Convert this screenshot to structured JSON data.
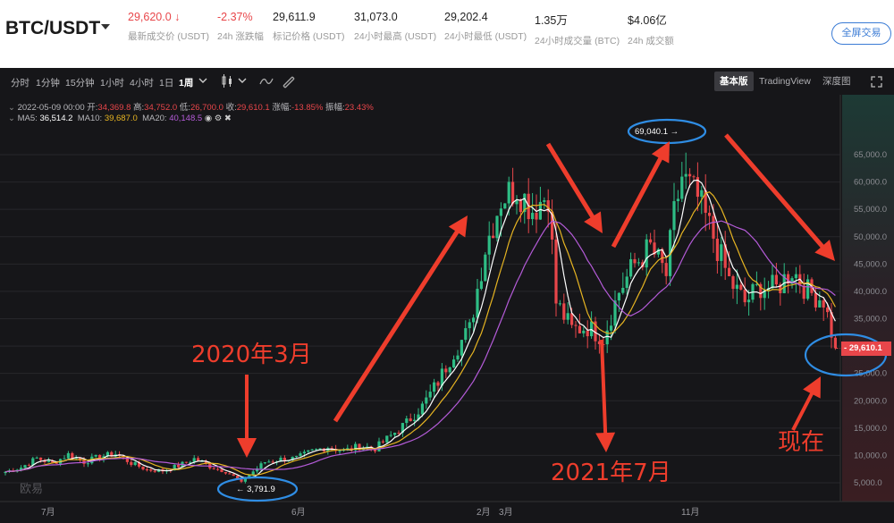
{
  "header": {
    "pair": "BTC/USDT",
    "stats": [
      {
        "value": "29,620.0 ↓",
        "label": "最新成交价 (USDT)",
        "red": true
      },
      {
        "value": "-2.37%",
        "label": "24h 涨跌幅",
        "red": true
      },
      {
        "value": "29,611.9",
        "label": "标记价格 (USDT)",
        "red": false
      },
      {
        "value": "31,073.0",
        "label": "24小时最高 (USDT)",
        "red": false
      },
      {
        "value": "29,202.4",
        "label": "24小时最低 (USDT)",
        "red": false
      },
      {
        "value": "1.35万",
        "label": "24小时成交量 (BTC)",
        "red": false
      },
      {
        "value": "$4.06亿",
        "label": "24h 成交额",
        "red": false
      }
    ],
    "fullscreen_label": "全屏交易"
  },
  "toolbar": {
    "timeframes": [
      "分时",
      "1分钟",
      "15分钟",
      "1小时",
      "4小时",
      "1日",
      "1周"
    ],
    "active_timeframe": "1周",
    "views": [
      "基本版",
      "TradingView",
      "深度图"
    ],
    "active_view": "基本版"
  },
  "ohlc": {
    "date": "2022-05-09 00:00",
    "open_label": "开:",
    "open": "34,369.8",
    "high_label": "高:",
    "high": "34,752.0",
    "low_label": "低:",
    "low": "26,700.0",
    "close_label": "收:",
    "close": "29,610.1",
    "change_label": "涨幅:",
    "change": "-13.85%",
    "amplitude_label": "振幅:",
    "amplitude": "23.43%"
  },
  "ma": {
    "ma5_label": "MA5:",
    "ma5": "36,514.2",
    "ma10_label": "MA10:",
    "ma10": "39,687.0",
    "ma20_label": "MA20:",
    "ma20": "40,148.5"
  },
  "colors": {
    "up": "#2ebd85",
    "down": "#e8464a",
    "ma5": "#ffffff",
    "ma10": "#e6b422",
    "ma20": "#b45bd8",
    "annotation": "#ee3d2c",
    "circle": "#2f8de4"
  },
  "chart_data": {
    "type": "candlestick",
    "y_ticks": [
      "65,000.0",
      "60,000.0",
      "55,000.0",
      "50,000.0",
      "45,000.0",
      "40,000.0",
      "35,000.0",
      "30,000.0",
      "25,000.0",
      "20,000.0",
      "15,000.0",
      "10,000.0",
      "5,000.0"
    ],
    "y_tick_values": [
      65000,
      60000,
      55000,
      50000,
      45000,
      40000,
      35000,
      30000,
      25000,
      20000,
      15000,
      10000,
      5000
    ],
    "x_ticks": [
      "7月",
      "6月",
      "2月",
      "3月",
      "11月"
    ],
    "close_trace": [
      [
        0,
        7000
      ],
      [
        4,
        7800
      ],
      [
        8,
        9500
      ],
      [
        12,
        8500
      ],
      [
        16,
        10200
      ],
      [
        20,
        8800
      ],
      [
        24,
        9800
      ],
      [
        28,
        10300
      ],
      [
        32,
        8600
      ],
      [
        36,
        7400
      ],
      [
        40,
        7200
      ],
      [
        44,
        8100
      ],
      [
        48,
        9400
      ],
      [
        52,
        8000
      ],
      [
        56,
        7100
      ],
      [
        60,
        5200
      ],
      [
        62,
        6500
      ],
      [
        66,
        8800
      ],
      [
        70,
        9300
      ],
      [
        74,
        9500
      ],
      [
        78,
        10800
      ],
      [
        82,
        11600
      ],
      [
        86,
        10800
      ],
      [
        90,
        11700
      ],
      [
        94,
        11300
      ],
      [
        98,
        13600
      ],
      [
        102,
        16000
      ],
      [
        106,
        19000
      ],
      [
        110,
        23500
      ],
      [
        114,
        29000
      ],
      [
        118,
        33000
      ],
      [
        122,
        48000
      ],
      [
        126,
        57000
      ],
      [
        130,
        59000
      ],
      [
        134,
        55000
      ],
      [
        138,
        58000
      ],
      [
        140,
        38000
      ],
      [
        144,
        33000
      ],
      [
        148,
        33500
      ],
      [
        152,
        31500
      ],
      [
        156,
        40000
      ],
      [
        160,
        45000
      ],
      [
        164,
        48000
      ],
      [
        168,
        43000
      ],
      [
        170,
        54000
      ],
      [
        172,
        61000
      ],
      [
        176,
        57000
      ],
      [
        180,
        50000
      ],
      [
        184,
        42000
      ],
      [
        188,
        38000
      ],
      [
        192,
        41000
      ],
      [
        196,
        40500
      ],
      [
        200,
        44000
      ],
      [
        204,
        40000
      ],
      [
        208,
        38500
      ],
      [
        211,
        29610
      ]
    ],
    "current_price": "29,610.1",
    "high_marker": "69,040.1",
    "low_marker": "3,791.9"
  },
  "annotations": {
    "label_2020": "2020年3月",
    "label_2021": "2021年7月",
    "label_now": "现在"
  },
  "watermark": "欧易"
}
